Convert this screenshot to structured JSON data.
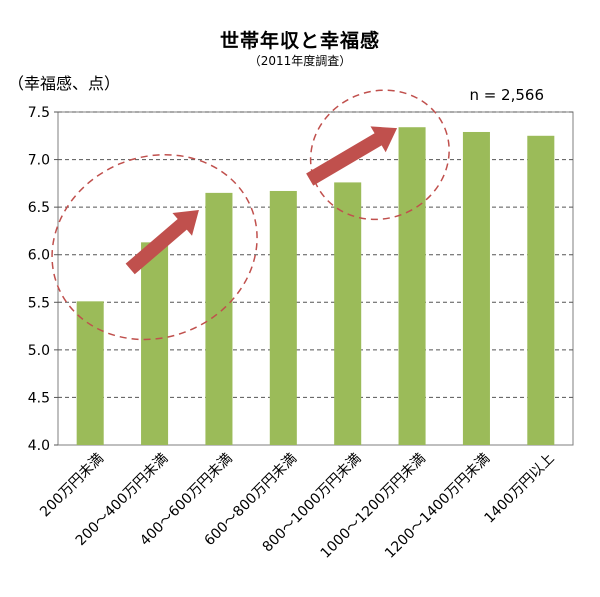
{
  "chart_data": {
    "type": "bar",
    "title": "世帯年収と幸福感",
    "subtitle": "（2011年度調査）",
    "ylabel": "（幸福感、点）",
    "note": "n = 2,566",
    "categories": [
      "200万円未満",
      "200～400万円未満",
      "400～600万円未満",
      "600～800万円未満",
      "800～1000万円未満",
      "1000～1200万円未満",
      "1200～1400万円未満",
      "1400万円以上"
    ],
    "values": [
      5.51,
      6.13,
      6.65,
      6.67,
      6.76,
      7.34,
      7.29,
      7.25
    ],
    "ylim": [
      4.0,
      7.5
    ],
    "yticks": [
      "4.0",
      "4.5",
      "5.0",
      "5.5",
      "6.0",
      "6.5",
      "7.0",
      "7.5"
    ],
    "grid": "dashed horizontal",
    "bar_color": "#9bbb59",
    "annotation_color": "#c0504d"
  }
}
